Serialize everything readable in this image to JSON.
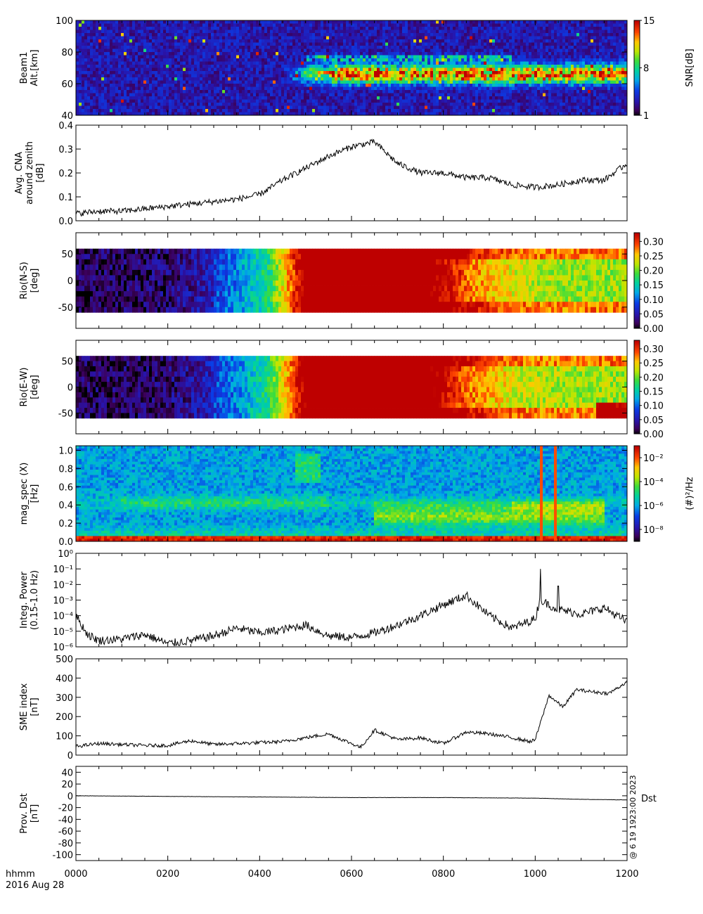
{
  "figure": {
    "x_axis_label": "hhmm",
    "date_label": "2016 Aug 28",
    "x_ticks": [
      "0000",
      "0200",
      "0400",
      "0600",
      "0800",
      "1000",
      "1200"
    ],
    "side_stamp": "@ 6 19 1923:00 2023"
  },
  "chart_data": [
    {
      "type": "heatmap",
      "ylabel": [
        "Beam1",
        "Alt.[km]"
      ],
      "ylim": [
        40,
        100
      ],
      "yticks": [
        "40",
        "60",
        "80",
        "100"
      ],
      "colorbar": {
        "label": "SNR[dB]",
        "ticks": [
          "1",
          "8",
          "15"
        ],
        "range": [
          1,
          15
        ]
      },
      "description_values": {
        "echo_layer_km": [
          60,
          75
        ],
        "onset_hhmm": "0500"
      }
    },
    {
      "type": "line",
      "ylabel": [
        "Avg. CNA",
        "around zenith",
        "[dB]"
      ],
      "ylim": [
        0.0,
        0.4
      ],
      "yticks": [
        "0.0",
        "0.1",
        "0.2",
        "0.3",
        "0.4"
      ],
      "x_hours": [
        0,
        0.5,
        1,
        1.5,
        2,
        2.5,
        3,
        3.5,
        4,
        4.5,
        5,
        5.5,
        6,
        6.5,
        7,
        7.5,
        8,
        8.5,
        9,
        9.5,
        10,
        10.5,
        11,
        11.5,
        12
      ],
      "values": [
        0.03,
        0.04,
        0.04,
        0.05,
        0.06,
        0.07,
        0.08,
        0.09,
        0.11,
        0.17,
        0.22,
        0.27,
        0.31,
        0.33,
        0.24,
        0.2,
        0.2,
        0.18,
        0.18,
        0.15,
        0.14,
        0.15,
        0.17,
        0.17,
        0.24
      ]
    },
    {
      "type": "heatmap",
      "ylabel": [
        "Rio(N-S)",
        "[deg]"
      ],
      "ylim": [
        -90,
        90
      ],
      "data_range": [
        -60,
        60
      ],
      "yticks": [
        "-50",
        "0",
        "50"
      ],
      "colorbar": {
        "label": "",
        "ticks": [
          "0.00",
          "0.05",
          "0.10",
          "0.15",
          "0.20",
          "0.25",
          "0.30"
        ],
        "range": [
          0,
          0.33
        ]
      }
    },
    {
      "type": "heatmap",
      "ylabel": [
        "Rio(E-W)",
        "[deg]"
      ],
      "ylim": [
        -90,
        90
      ],
      "data_range": [
        -60,
        60
      ],
      "yticks": [
        "-50",
        "0",
        "50"
      ],
      "colorbar": {
        "label": "",
        "ticks": [
          "0.00",
          "0.05",
          "0.10",
          "0.15",
          "0.20",
          "0.25",
          "0.30"
        ],
        "range": [
          0,
          0.33
        ]
      }
    },
    {
      "type": "heatmap",
      "ylabel": [
        "mag_spec (X)",
        "[Hz]"
      ],
      "ylim": [
        0,
        1.05
      ],
      "yticks": [
        "0.0",
        "0.2",
        "0.4",
        "0.6",
        "0.8",
        "1.0"
      ],
      "colorbar": {
        "label": "(#)²/Hz",
        "ticks": [
          "10⁻⁸",
          "10⁻⁶",
          "10⁻⁴",
          "10⁻²"
        ],
        "range_log": [
          -9,
          -1
        ]
      }
    },
    {
      "type": "line",
      "log_y": true,
      "ylabel": [
        "Integ. Power",
        "(0.15-1.0 Hz)"
      ],
      "ylim_log": [
        -6,
        0
      ],
      "yticks": [
        "10⁻⁶",
        "10⁻⁵",
        "10⁻⁴",
        "10⁻³",
        "10⁻²",
        "10⁻¹",
        "10⁰"
      ],
      "x_hours": [
        0,
        0.25,
        0.5,
        1,
        1.5,
        2,
        2.5,
        3,
        3.5,
        4,
        4.5,
        5,
        5.5,
        6,
        6.5,
        7,
        7.5,
        8,
        8.5,
        9,
        9.5,
        10,
        10.1,
        10.5,
        11,
        11.5,
        12
      ],
      "log_values": [
        -4.0,
        -5.2,
        -5.6,
        -5.5,
        -5.2,
        -5.8,
        -5.6,
        -5.3,
        -4.8,
        -5.1,
        -4.9,
        -4.6,
        -5.3,
        -5.4,
        -5.1,
        -4.6,
        -4.0,
        -3.3,
        -2.7,
        -4.0,
        -4.8,
        -4.2,
        -3.0,
        -3.6,
        -3.9,
        -3.5,
        -4.4
      ]
    },
    {
      "type": "line",
      "ylabel": [
        "SME index",
        "[nT]"
      ],
      "ylim": [
        0,
        500
      ],
      "yticks": [
        "0",
        "100",
        "200",
        "300",
        "400",
        "500"
      ],
      "x_hours": [
        0,
        0.5,
        1,
        1.5,
        2,
        2.5,
        3,
        3.5,
        4,
        4.5,
        5,
        5.5,
        6,
        6.2,
        6.5,
        7,
        7.5,
        8,
        8.5,
        9,
        9.5,
        9.9,
        10.0,
        10.3,
        10.6,
        10.9,
        11.2,
        11.6,
        12
      ],
      "values": [
        45,
        60,
        55,
        50,
        50,
        75,
        55,
        60,
        65,
        70,
        90,
        110,
        60,
        40,
        130,
        80,
        90,
        60,
        120,
        110,
        90,
        70,
        80,
        310,
        250,
        340,
        330,
        320,
        380
      ]
    },
    {
      "type": "line",
      "ylabel": [
        "Prov. Dst",
        "[nT]"
      ],
      "ylim": [
        -110,
        50
      ],
      "yticks": [
        "-100",
        "-80",
        "-60",
        "-40",
        "-20",
        "0",
        "20",
        "40"
      ],
      "legend": "Dst",
      "x_hours": [
        0,
        2,
        4,
        6,
        8,
        10,
        11,
        12
      ],
      "values": [
        0,
        -1,
        -2,
        -3,
        -3,
        -4,
        -6,
        -7
      ]
    }
  ]
}
